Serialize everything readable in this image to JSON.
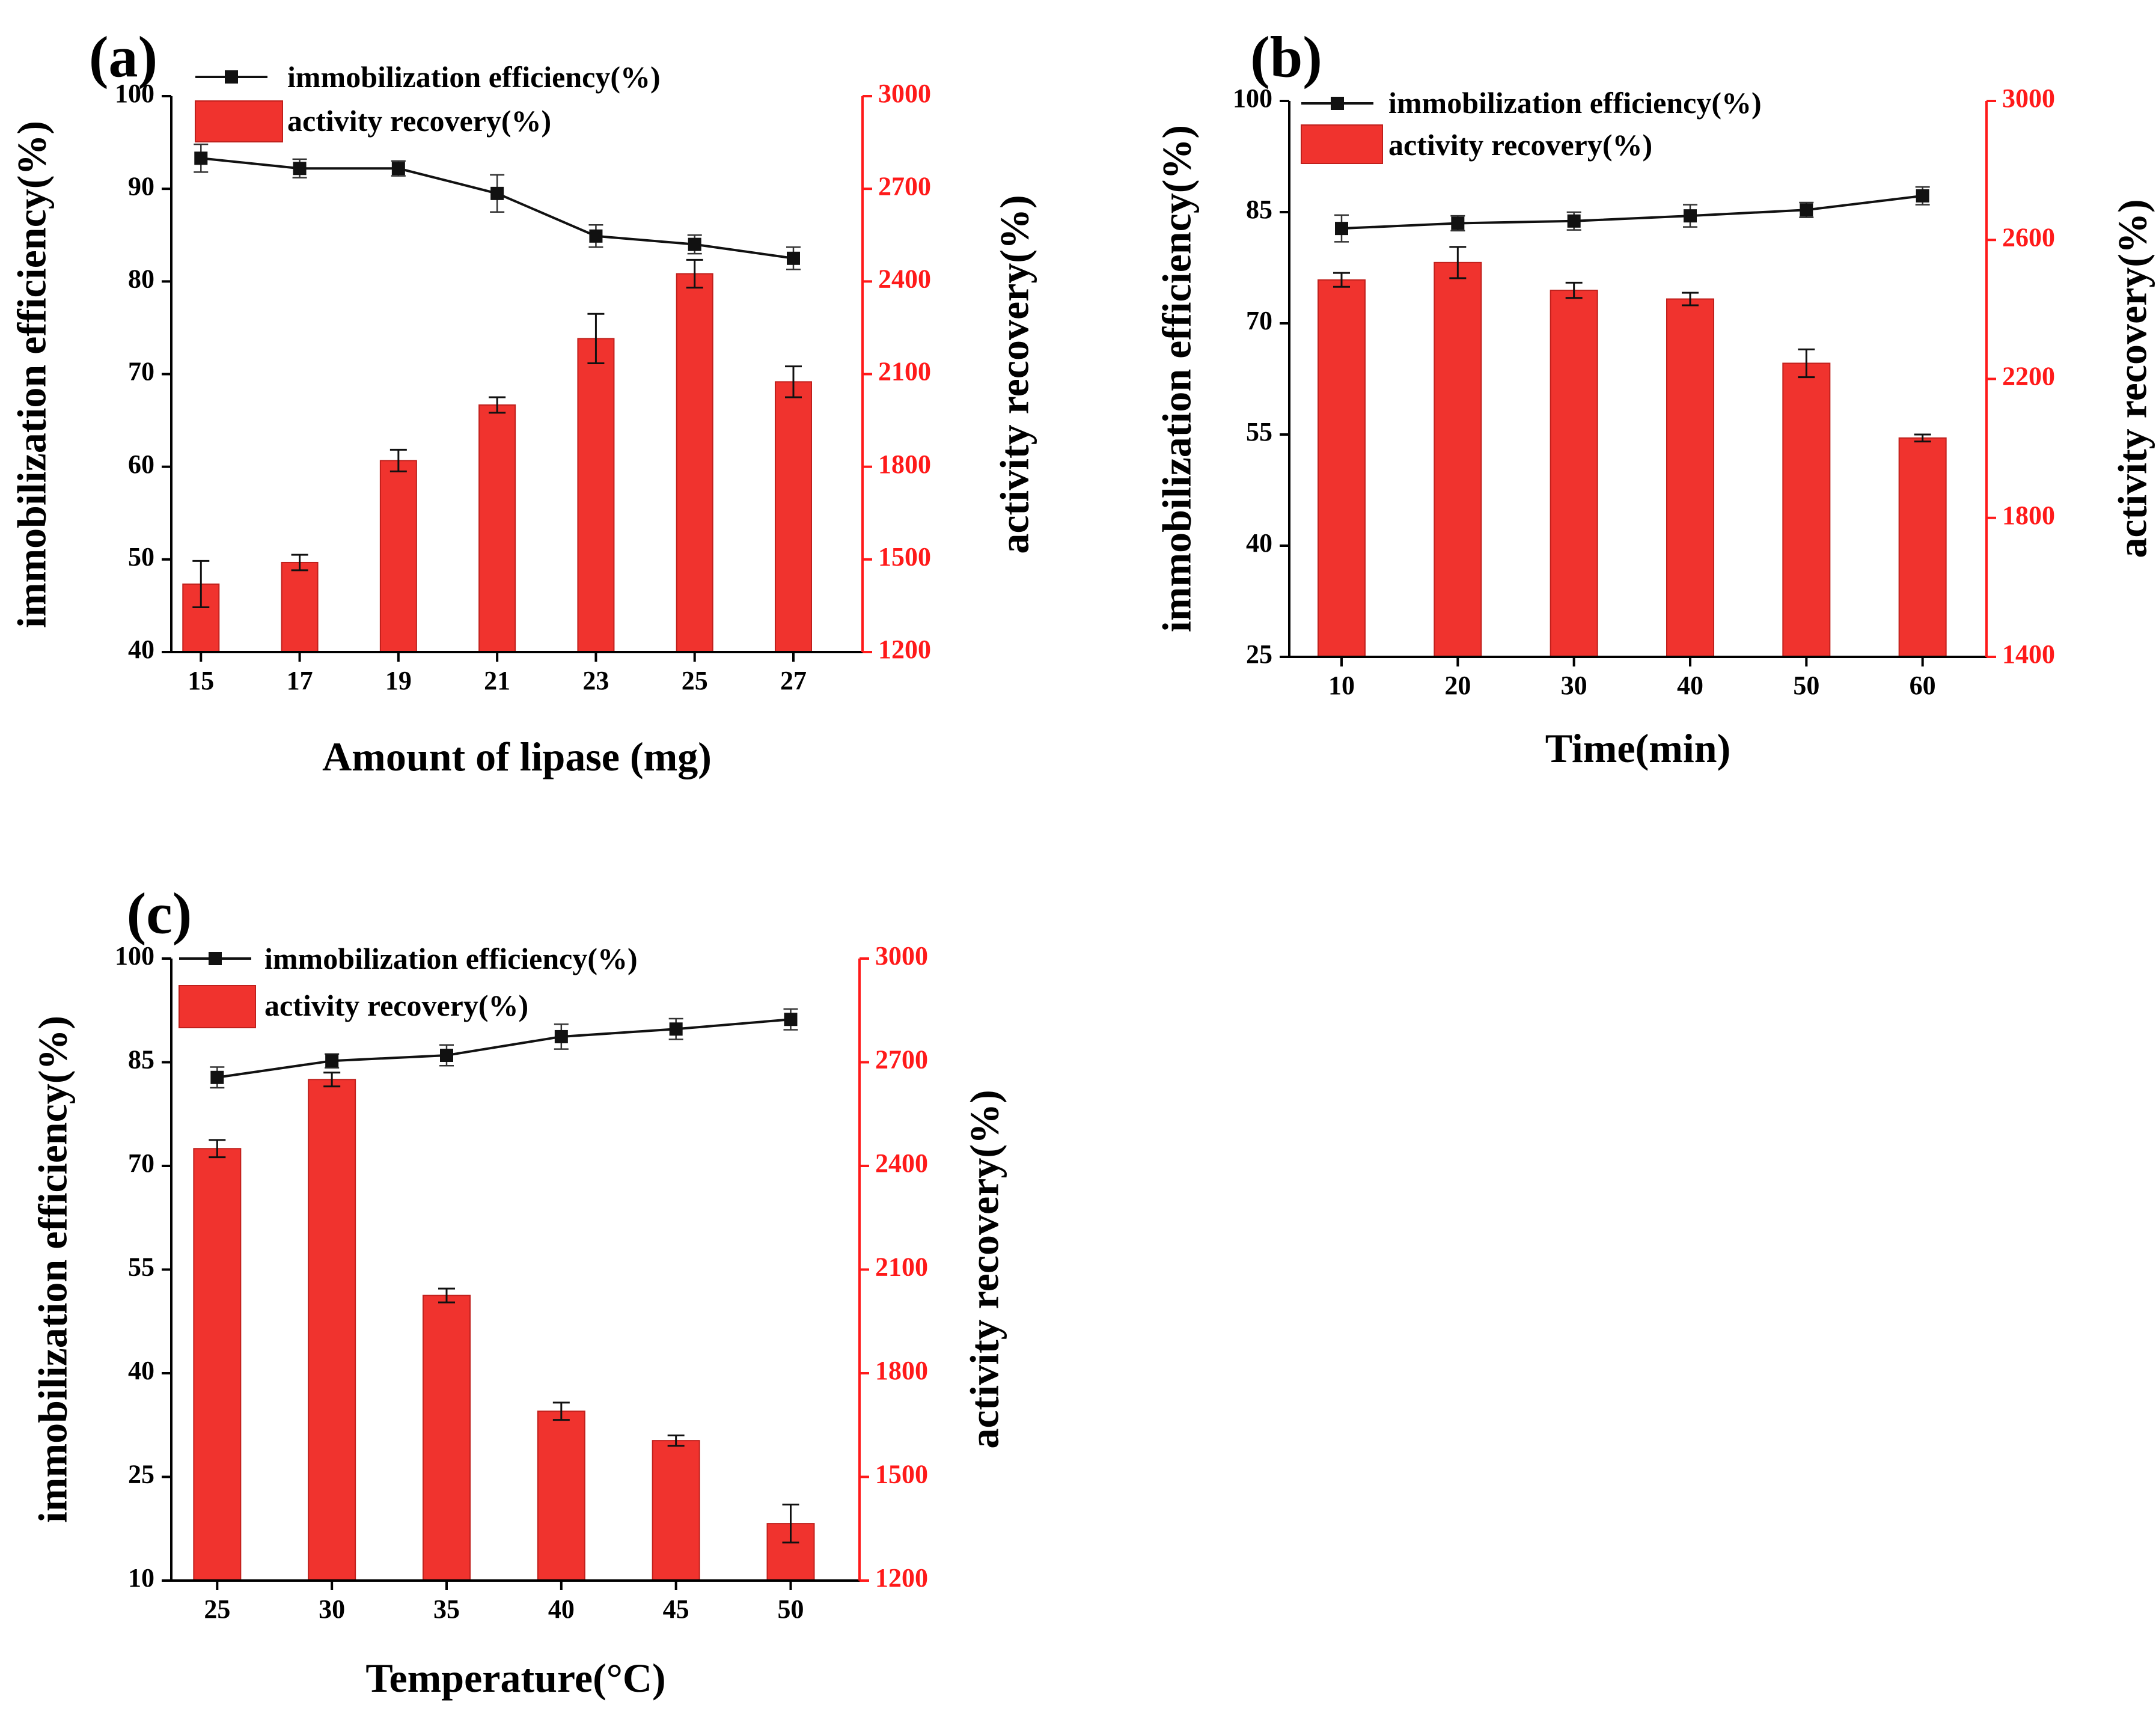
{
  "colors": {
    "line": "#111111",
    "bar": "#f0332e",
    "bar_stroke": "#c0201c",
    "right_axis": "#ff1a1a"
  },
  "chart_data": [
    {
      "panel": "(a)",
      "type": "bar+line",
      "xlabel": "Amount of lipase (mg)",
      "ylabel_left": "immobilization efficiency(%)",
      "ylabel_right": "activity recovery(%)",
      "categories": [
        "15",
        "17",
        "19",
        "21",
        "23",
        "25",
        "27"
      ],
      "ylim_left": [
        40,
        100
      ],
      "yticks_left": [
        "40",
        "50",
        "60",
        "70",
        "80",
        "90",
        "100"
      ],
      "ylim_right": [
        1200,
        3000
      ],
      "yticks_right": [
        "1200",
        "1500",
        "1800",
        "2100",
        "2400",
        "2700",
        "3000"
      ],
      "series": [
        {
          "name": "immobilization efficiency(%)",
          "kind": "line",
          "axis": "left",
          "values": [
            93.3,
            92.2,
            92.2,
            89.5,
            84.9,
            84.0,
            82.5
          ],
          "errors": [
            1.5,
            1.0,
            0.8,
            2.0,
            1.2,
            1.0,
            1.2
          ]
        },
        {
          "name": "activity recovery(%)",
          "kind": "bar",
          "axis": "right",
          "values": [
            1420,
            1490,
            1820,
            2000,
            2215,
            2425,
            2075
          ],
          "errors": [
            75,
            25,
            35,
            25,
            80,
            45,
            50
          ]
        }
      ]
    },
    {
      "panel": "(b)",
      "type": "bar+line",
      "xlabel": "Time(min)",
      "ylabel_left": "immobilization efficiency(%)",
      "ylabel_right": "activity recovery(%)",
      "categories": [
        "10",
        "20",
        "30",
        "40",
        "50",
        "60"
      ],
      "ylim_left": [
        25,
        100
      ],
      "yticks_left": [
        "25",
        "40",
        "55",
        "70",
        "85",
        "100"
      ],
      "ylim_right": [
        1400,
        3000
      ],
      "yticks_right": [
        "1400",
        "1800",
        "2200",
        "2600",
        "3000"
      ],
      "series": [
        {
          "name": "immobilization efficiency(%)",
          "kind": "line",
          "axis": "left",
          "values": [
            82.8,
            83.5,
            83.8,
            84.5,
            85.3,
            87.2
          ],
          "errors": [
            1.8,
            1.0,
            1.2,
            1.5,
            1.0,
            1.2
          ]
        },
        {
          "name": "activity recovery(%)",
          "kind": "bar",
          "axis": "right",
          "values": [
            2485,
            2535,
            2455,
            2430,
            2245,
            2030
          ],
          "errors": [
            20,
            45,
            22,
            18,
            40,
            10
          ]
        }
      ]
    },
    {
      "panel": "(c)",
      "type": "bar+line",
      "xlabel": "Temperature(°C)",
      "ylabel_left": "immobilization efficiency(%)",
      "ylabel_right": "activity recovery(%)",
      "categories": [
        "25",
        "30",
        "35",
        "40",
        "45",
        "50"
      ],
      "ylim_left": [
        10,
        100
      ],
      "yticks_left": [
        "10",
        "25",
        "40",
        "55",
        "70",
        "85",
        "100"
      ],
      "ylim_right": [
        1200,
        3000
      ],
      "yticks_right": [
        "1200",
        "1500",
        "1800",
        "2100",
        "2400",
        "2700",
        "3000"
      ],
      "series": [
        {
          "name": "immobilization efficiency(%)",
          "kind": "line",
          "axis": "left",
          "values": [
            82.8,
            85.2,
            86.0,
            88.7,
            89.8,
            91.2
          ],
          "errors": [
            1.5,
            1.0,
            1.5,
            1.8,
            1.5,
            1.5
          ]
        },
        {
          "name": "activity recovery(%)",
          "kind": "bar",
          "axis": "right",
          "values": [
            2450,
            2650,
            2025,
            1690,
            1605,
            1365
          ],
          "errors": [
            25,
            20,
            20,
            25,
            15,
            55
          ]
        }
      ]
    }
  ]
}
